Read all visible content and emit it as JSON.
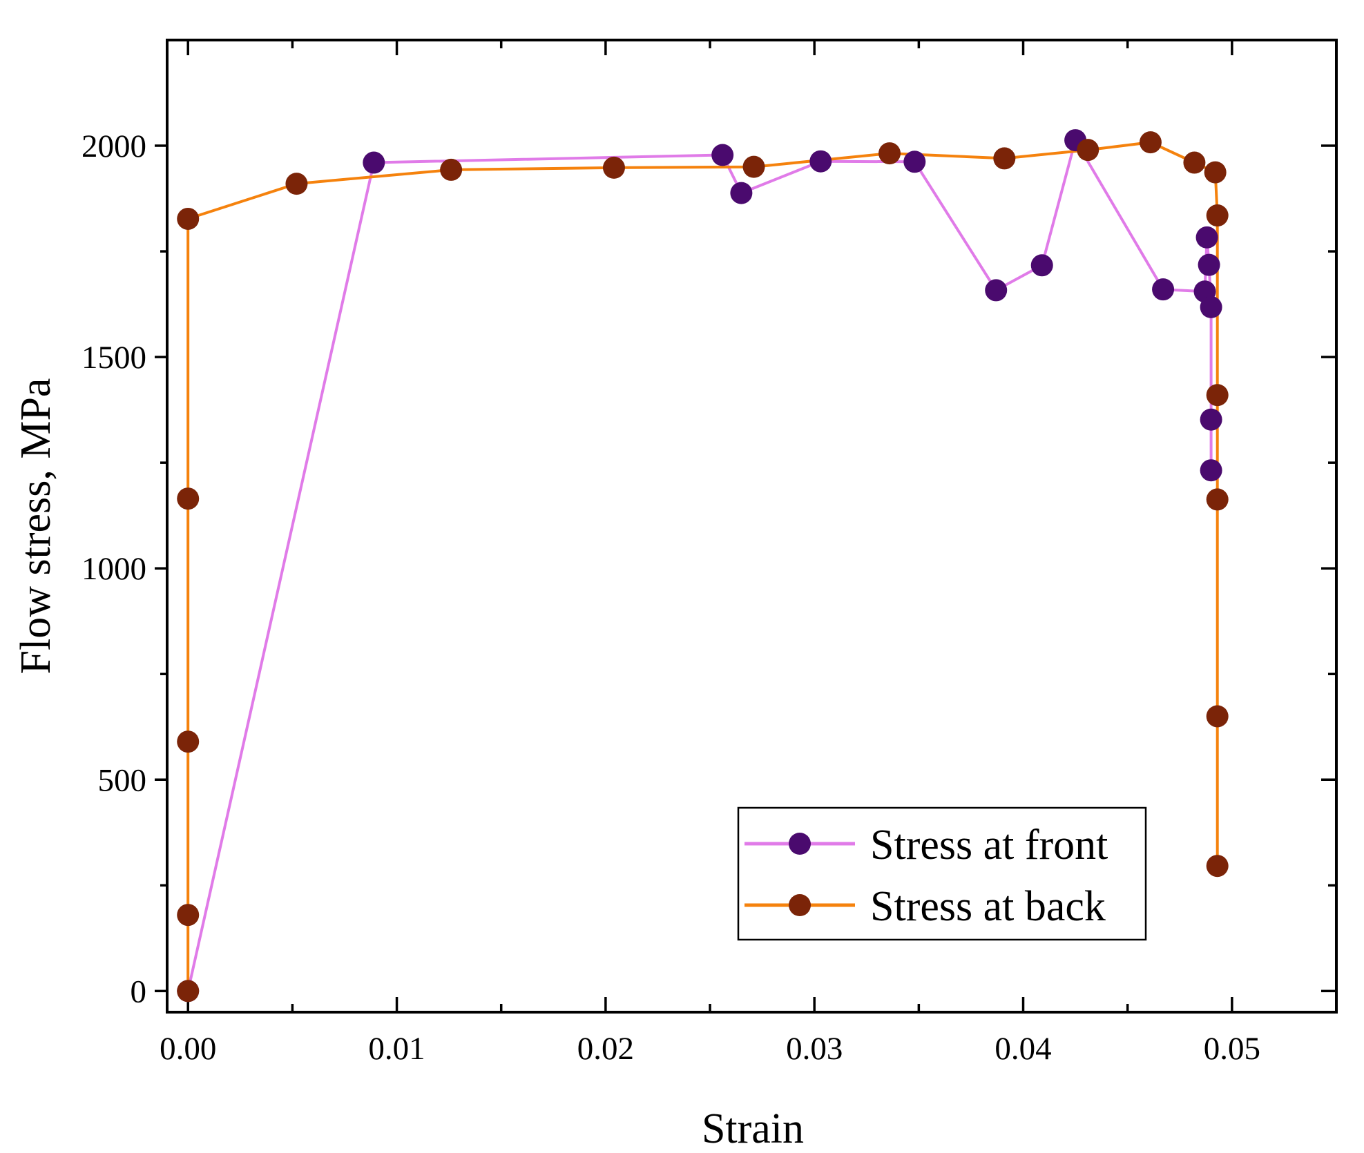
{
  "chart_data": {
    "type": "line",
    "xlabel": "Strain",
    "ylabel": "Flow stress, MPa",
    "xlim": [
      -0.001,
      0.055
    ],
    "ylim": [
      -50,
      2250
    ],
    "x_ticks": [
      0.0,
      0.01,
      0.02,
      0.03,
      0.04,
      0.05
    ],
    "x_tick_labels": [
      "0.00",
      "0.01",
      "0.02",
      "0.03",
      "0.04",
      "0.05"
    ],
    "x_minor_ticks": [
      0.005,
      0.015,
      0.025,
      0.035,
      0.045,
      0.055
    ],
    "y_ticks": [
      0,
      500,
      1000,
      1500,
      2000
    ],
    "y_tick_labels": [
      "0",
      "500",
      "1000",
      "1500",
      "2000"
    ],
    "y_minor_ticks": [
      250,
      750,
      1250,
      1750
    ],
    "grid": false,
    "legend_position": "bottom-right",
    "series": [
      {
        "name": "Stress at front",
        "line_color": "#e07be8",
        "marker_color": "#4a0a6e",
        "points": [
          [
            0.0,
            0
          ],
          [
            0.0089,
            1960
          ],
          [
            0.0256,
            1978
          ],
          [
            0.0265,
            1888
          ],
          [
            0.0303,
            1963
          ],
          [
            0.0348,
            1962
          ],
          [
            0.0387,
            1658
          ],
          [
            0.0409,
            1717
          ],
          [
            0.0425,
            2013
          ],
          [
            0.0467,
            1660
          ],
          [
            0.0487,
            1655
          ],
          [
            0.0488,
            1783
          ],
          [
            0.0489,
            1718
          ],
          [
            0.049,
            1618
          ],
          [
            0.049,
            1352
          ],
          [
            0.049,
            1232
          ]
        ]
      },
      {
        "name": "Stress at back",
        "line_color": "#f5820d",
        "marker_color": "#7b2408",
        "points": [
          [
            0.0,
            0
          ],
          [
            0.0,
            180
          ],
          [
            0.0,
            590
          ],
          [
            0.0,
            1165
          ],
          [
            0.0,
            1827
          ],
          [
            0.0052,
            1910
          ],
          [
            0.0126,
            1943
          ],
          [
            0.0204,
            1948
          ],
          [
            0.0271,
            1950
          ],
          [
            0.0336,
            1982
          ],
          [
            0.0391,
            1970
          ],
          [
            0.0431,
            1990
          ],
          [
            0.0461,
            2008
          ],
          [
            0.0482,
            1960
          ],
          [
            0.0492,
            1937
          ],
          [
            0.0493,
            1835
          ],
          [
            0.0493,
            1410
          ],
          [
            0.0493,
            1163
          ],
          [
            0.0493,
            650
          ],
          [
            0.0493,
            296
          ]
        ]
      }
    ]
  }
}
